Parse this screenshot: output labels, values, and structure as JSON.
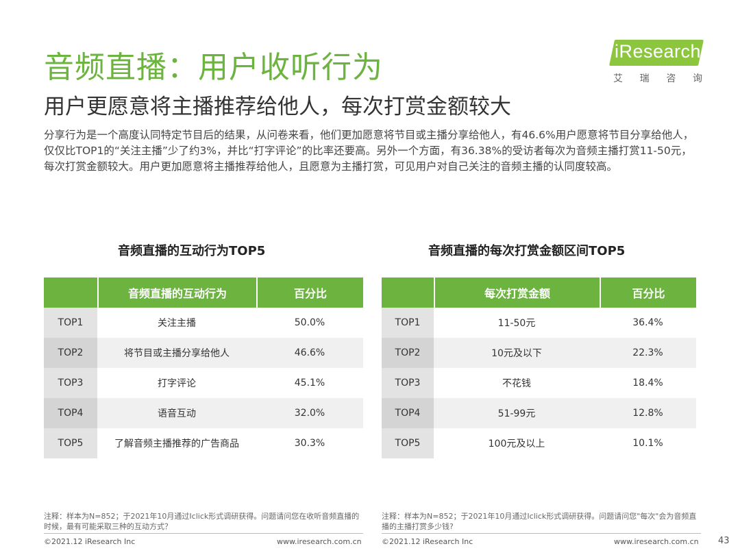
{
  "header": {
    "title": "音频直播：用户收听行为",
    "subtitle": "用户更愿意将主播推荐给他人，每次打赏金额较大"
  },
  "logo": {
    "text": "iResearch",
    "chars": [
      "艾",
      "瑞",
      "咨",
      "询"
    ],
    "color": "#8cc63f"
  },
  "intro": "分享行为是一个高度认同特定节目后的结果，从问卷来看，他们更加愿意将节目或主播分享给他人，有46.6%用户愿意将节目分享给他人，仅仅比TOP1的“关注主播”少了约3%，并比“打字评论”的比率还要高。另外一个方面，有36.38%的受访者每次为音频主播打赏11-50元，每次打赏金额较大。用户更加愿意将主播推荐给他人，且愿意为主播打赏，可见用户对自己关注的音频主播的认同度较高。",
  "accent_color": "#6cb33f",
  "left_table": {
    "title": "音频直播的互动行为TOP5",
    "headers": [
      "",
      "音频直播的互动行为",
      "百分比"
    ],
    "rows": [
      [
        "TOP1",
        "关注主播",
        "50.0%"
      ],
      [
        "TOP2",
        "将节目或主播分享给他人",
        "46.6%"
      ],
      [
        "TOP3",
        "打字评论",
        "45.1%"
      ],
      [
        "TOP4",
        "语音互动",
        "32.0%"
      ],
      [
        "TOP5",
        "了解音频主播推荐的广告商品",
        "30.3%"
      ]
    ],
    "note": "注释：样本为N=852；于2021年10月通过Iclick形式调研获得。问题请问您在收听音频直播的时候，最有可能采取三种的互动方式？"
  },
  "right_table": {
    "title": "音频直播的每次打赏金额区间TOP5",
    "headers": [
      "",
      "每次打赏金额",
      "百分比"
    ],
    "rows": [
      [
        "TOP1",
        "11-50元",
        "36.4%"
      ],
      [
        "TOP2",
        "10元及以下",
        "22.3%"
      ],
      [
        "TOP3",
        "不花钱",
        "18.4%"
      ],
      [
        "TOP4",
        "51-99元",
        "12.8%"
      ],
      [
        "TOP5",
        "100元及以上",
        "10.1%"
      ]
    ],
    "note": "注释：样本为N=852；于2021年10月通过Iclick形式调研获得。问题请问您\"每次\"会为音频直播的主播打赏多少钱?"
  },
  "footer": {
    "copyright": "©2021.12 iResearch Inc",
    "website": "www.iresearch.com.cn",
    "page": "43"
  }
}
